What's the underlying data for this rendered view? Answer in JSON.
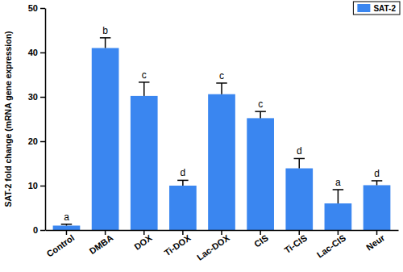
{
  "chart_data": {
    "type": "bar",
    "y_label": "SAT-2 fold change (mRNA gene expression)",
    "categories": [
      "Control",
      "DMBA",
      "DOX",
      "Ti-DOX",
      "Lac-DOX",
      "CIS",
      "Ti-CIS",
      "Lac-CIS",
      "Neur"
    ],
    "series": [
      {
        "name": "SAT-2",
        "color": "#3a86f0",
        "values": [
          1.0,
          41.0,
          30.2,
          10.0,
          30.6,
          25.2,
          13.9,
          6.0,
          10.1
        ],
        "errors": [
          0.3,
          2.3,
          3.1,
          1.2,
          2.5,
          1.5,
          2.2,
          3.1,
          1.0
        ]
      }
    ],
    "annotations": [
      "a",
      "b",
      "c",
      "d",
      "c",
      "c",
      "d",
      "a",
      "d"
    ],
    "ylim": [
      0,
      50
    ],
    "yticks": [
      0,
      10,
      20,
      30,
      40,
      50
    ],
    "grid": false,
    "legend": "upper right"
  }
}
